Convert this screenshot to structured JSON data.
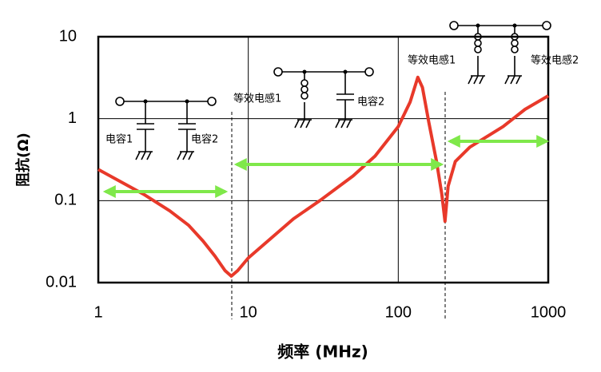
{
  "chart_data": {
    "type": "line",
    "x_label": "频率 (MHz)",
    "y_label": "阻抗(Ω)",
    "log_x": true,
    "log_y": true,
    "grid": true,
    "color": "#e8392a",
    "xlim": [
      1,
      1000
    ],
    "xticks": [
      1,
      10,
      100,
      1000
    ],
    "ylim": [
      0.01,
      10
    ],
    "yticks": [
      0.01,
      0.1,
      1,
      10
    ],
    "x": [
      1,
      1.5,
      2,
      3,
      4,
      5,
      6,
      7,
      7.7,
      8.5,
      10,
      20,
      30,
      50,
      70,
      100,
      120,
      135,
      145,
      160,
      180,
      195,
      205,
      215,
      240,
      300,
      500,
      700,
      1000
    ],
    "values": [
      0.24,
      0.16,
      0.12,
      0.075,
      0.05,
      0.032,
      0.021,
      0.014,
      0.012,
      0.014,
      0.02,
      0.06,
      0.1,
      0.2,
      0.35,
      0.8,
      1.6,
      3.2,
      2.4,
      0.9,
      0.3,
      0.12,
      0.056,
      0.15,
      0.3,
      0.45,
      0.8,
      1.3,
      1.9
    ],
    "annotations": [
      "电容1",
      "电容2",
      "等效电感1",
      "电容2",
      "等效电感1",
      "等效电感2"
    ]
  }
}
